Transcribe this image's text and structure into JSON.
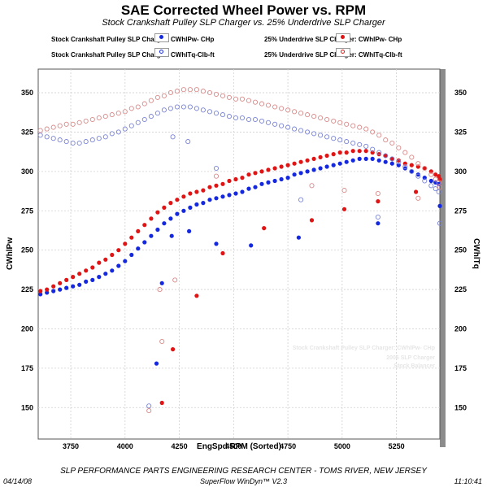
{
  "chart_data": {
    "type": "scatter",
    "title": "SAE Corrected Wheel Power vs. RPM",
    "subtitle": "Stock Crankshaft Pulley SLP Charger vs. 25% Underdrive SLP Charger",
    "xlabel": "EngSpd  RPM  (Sorted)",
    "ylabel_left": "CWhlPw",
    "ylabel_right": "CWhlTq",
    "xlim": [
      3600,
      5450
    ],
    "ylim": [
      130,
      365
    ],
    "xticks": [
      3750,
      4000,
      4250,
      4500,
      4750,
      5000,
      5250
    ],
    "yticks": [
      150,
      175,
      200,
      225,
      250,
      275,
      300,
      325,
      350
    ],
    "grid": true,
    "legend_position": "top",
    "watermark": [
      "Stock Crankshaft Pulley SLP Charger: CWhlPw- CHp",
      "2006 SLP Charger",
      "Stock Balancer"
    ],
    "series": [
      {
        "name": "Stock Crankshaft Pulley SLP Charger: CWhlPw- CHp",
        "color": "#1428e0",
        "marker": "filled",
        "x": [
          3610,
          3640,
          3670,
          3700,
          3730,
          3760,
          3790,
          3820,
          3850,
          3880,
          3910,
          3940,
          3970,
          4000,
          4030,
          4060,
          4090,
          4120,
          4150,
          4180,
          4210,
          4240,
          4270,
          4300,
          4330,
          4360,
          4390,
          4420,
          4450,
          4480,
          4510,
          4540,
          4570,
          4600,
          4630,
          4660,
          4690,
          4720,
          4750,
          4780,
          4810,
          4840,
          4870,
          4900,
          4930,
          4960,
          4990,
          5020,
          5050,
          5080,
          5110,
          5140,
          5170,
          5200,
          5230,
          5260,
          5290,
          5320,
          5350,
          5380,
          5410,
          5430,
          5445,
          5450,
          4145,
          4170,
          4215,
          4295,
          4420,
          4580,
          4800,
          5165
        ],
        "y": [
          222,
          223,
          224,
          225,
          226,
          227,
          228,
          230,
          231,
          233,
          235,
          237,
          240,
          243,
          247,
          251,
          255,
          259,
          263,
          267,
          270,
          273,
          275,
          277,
          279,
          280,
          282,
          283,
          284,
          285,
          286,
          287,
          289,
          290,
          292,
          293,
          294,
          295,
          296,
          298,
          299,
          300,
          301,
          302,
          303,
          304,
          305,
          306,
          307,
          308,
          308,
          308,
          307,
          306,
          305,
          304,
          302,
          300,
          298,
          296,
          294,
          293,
          292,
          278,
          178,
          229,
          259,
          262,
          254,
          253,
          258,
          267
        ]
      },
      {
        "name": "25% Underdrive SLP Charger: CWhlPw- CHp",
        "color": "#e01414",
        "marker": "filled",
        "x": [
          3610,
          3640,
          3670,
          3700,
          3730,
          3760,
          3790,
          3820,
          3850,
          3880,
          3910,
          3940,
          3970,
          4000,
          4030,
          4060,
          4090,
          4120,
          4150,
          4180,
          4210,
          4240,
          4270,
          4300,
          4330,
          4360,
          4390,
          4420,
          4450,
          4480,
          4510,
          4540,
          4570,
          4600,
          4630,
          4660,
          4690,
          4720,
          4750,
          4780,
          4810,
          4840,
          4870,
          4900,
          4930,
          4960,
          4990,
          5020,
          5050,
          5080,
          5110,
          5140,
          5170,
          5200,
          5230,
          5260,
          5290,
          5320,
          5350,
          5380,
          5410,
          5430,
          5445,
          5450,
          4170,
          4220,
          4330,
          4450,
          4640,
          4860,
          5010,
          5165,
          5340
        ],
        "y": [
          224,
          225,
          227,
          229,
          231,
          233,
          235,
          237,
          239,
          242,
          244,
          247,
          250,
          254,
          258,
          262,
          266,
          270,
          274,
          277,
          280,
          282,
          284,
          286,
          287,
          288,
          290,
          291,
          292,
          294,
          295,
          296,
          298,
          299,
          300,
          301,
          302,
          303,
          304,
          305,
          306,
          307,
          308,
          309,
          310,
          311,
          312,
          312,
          313,
          313,
          313,
          312,
          311,
          310,
          308,
          307,
          305,
          304,
          303,
          302,
          300,
          298,
          297,
          295,
          153,
          187,
          221,
          248,
          264,
          269,
          276,
          281,
          287
        ]
      },
      {
        "name": "Stock Crankshaft Pulley SLP Charger: CWhlTq-Clb-ft",
        "color": "#7a84d6",
        "marker": "open",
        "x": [
          3610,
          3640,
          3670,
          3700,
          3730,
          3760,
          3790,
          3820,
          3850,
          3880,
          3910,
          3940,
          3970,
          4000,
          4030,
          4060,
          4090,
          4120,
          4150,
          4180,
          4210,
          4240,
          4270,
          4300,
          4330,
          4360,
          4390,
          4420,
          4450,
          4480,
          4510,
          4540,
          4570,
          4600,
          4630,
          4660,
          4690,
          4720,
          4750,
          4780,
          4810,
          4840,
          4870,
          4900,
          4930,
          4960,
          4990,
          5020,
          5050,
          5080,
          5110,
          5140,
          5170,
          5200,
          5230,
          5260,
          5290,
          5320,
          5350,
          5380,
          5410,
          5430,
          5445,
          5450,
          4110,
          4220,
          4290,
          4420,
          4810,
          5165
        ],
        "y": [
          323,
          322,
          321,
          320,
          319,
          318,
          318,
          319,
          320,
          321,
          322,
          324,
          325,
          327,
          329,
          331,
          333,
          335,
          337,
          339,
          340,
          341,
          341,
          341,
          340,
          339,
          338,
          337,
          336,
          335,
          334,
          334,
          333,
          333,
          332,
          331,
          330,
          329,
          328,
          327,
          326,
          325,
          324,
          323,
          322,
          321,
          320,
          319,
          318,
          317,
          316,
          314,
          312,
          310,
          308,
          306,
          303,
          300,
          297,
          294,
          291,
          289,
          287,
          267,
          151,
          322,
          319,
          302,
          282,
          271
        ]
      },
      {
        "name": "25% Underdrive SLP Charger: CWhlTq-Clb-ft",
        "color": "#d98a8a",
        "marker": "open",
        "x": [
          3610,
          3640,
          3670,
          3700,
          3730,
          3760,
          3790,
          3820,
          3850,
          3880,
          3910,
          3940,
          3970,
          4000,
          4030,
          4060,
          4090,
          4120,
          4150,
          4180,
          4210,
          4240,
          4270,
          4300,
          4330,
          4360,
          4390,
          4420,
          4450,
          4480,
          4510,
          4540,
          4570,
          4600,
          4630,
          4660,
          4690,
          4720,
          4750,
          4780,
          4810,
          4840,
          4870,
          4900,
          4930,
          4960,
          4990,
          5020,
          5050,
          5080,
          5110,
          5140,
          5170,
          5200,
          5230,
          5260,
          5290,
          5320,
          5350,
          5380,
          5410,
          5430,
          5445,
          5450,
          4110,
          4160,
          4170,
          4230,
          4420,
          4860,
          5010,
          5165,
          5350
        ],
        "y": [
          326,
          327,
          328,
          329,
          330,
          330,
          331,
          332,
          333,
          334,
          335,
          336,
          337,
          338,
          340,
          341,
          343,
          345,
          347,
          348,
          350,
          351,
          352,
          352,
          352,
          351,
          350,
          349,
          348,
          347,
          346,
          346,
          345,
          344,
          343,
          342,
          341,
          340,
          339,
          338,
          337,
          336,
          335,
          334,
          333,
          332,
          331,
          330,
          329,
          328,
          327,
          325,
          323,
          320,
          318,
          315,
          312,
          309,
          305,
          302,
          298,
          295,
          293,
          290,
          148,
          225,
          192,
          231,
          297,
          291,
          288,
          286,
          283
        ]
      }
    ]
  },
  "legend": {
    "stock_pw": "Stock Crankshaft Pulley SLP Charger: CWhlPw- CHp",
    "stock_tq": "Stock Crankshaft Pulley SLP Charger: CWhlTq-Clb-ft",
    "ud_pw": "25% Underdrive SLP Charger: CWhlPw- CHp",
    "ud_tq": "25% Underdrive SLP Charger: CWhlTq-Clb-ft"
  },
  "footer": {
    "center": "SLP PERFORMANCE PARTS ENGINEERING RESEARCH CENTER - TOMS RIVER, NEW JERSEY",
    "software": "SuperFlow WinDyn™ V2.3",
    "date": "04/14/08",
    "time": "11:10:41"
  }
}
